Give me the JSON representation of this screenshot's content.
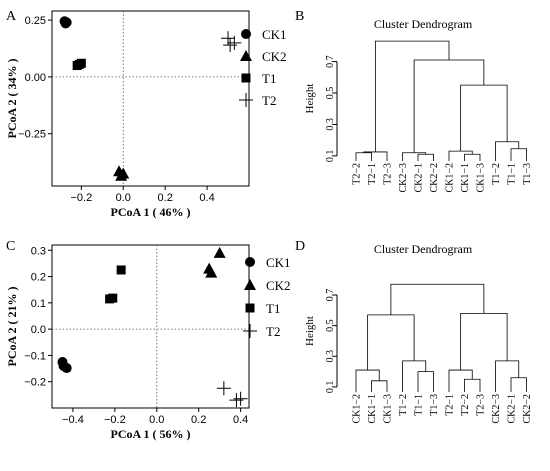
{
  "chart_data": [
    {
      "panel": "A",
      "type": "scatter",
      "xlabel": "PCoA 1 ( 46% )",
      "ylabel": "PCoA 2 ( 34% )",
      "xlim": [
        -0.34,
        0.6
      ],
      "ylim": [
        -0.48,
        0.29
      ],
      "xticks": [
        -0.2,
        0.0,
        0.2,
        0.4
      ],
      "xtick_labels": [
        "−0.2",
        "0.0",
        "0.2",
        "0.4"
      ],
      "yticks": [
        0.25,
        0.0,
        -0.25
      ],
      "ytick_labels": [
        "0.25",
        "0.00",
        "−0.25"
      ],
      "legend": [
        "CK1",
        "CK2",
        "T1",
        "T2"
      ],
      "legend_position": "top-right",
      "reference_lines": {
        "x": 0,
        "y": 0
      },
      "series": [
        {
          "name": "CK1",
          "marker": "circle",
          "points": [
            [
              -0.28,
              0.245
            ],
            [
              -0.27,
              0.24
            ],
            [
              -0.275,
              0.235
            ]
          ]
        },
        {
          "name": "CK2",
          "marker": "triangle",
          "points": [
            [
              -0.02,
              -0.415
            ],
            [
              0.0,
              -0.425
            ],
            [
              -0.01,
              -0.435
            ]
          ]
        },
        {
          "name": "T1",
          "marker": "square",
          "points": [
            [
              -0.22,
              0.05
            ],
            [
              -0.2,
              0.06
            ],
            [
              -0.21,
              0.055
            ]
          ]
        },
        {
          "name": "T2",
          "marker": "plus",
          "points": [
            [
              0.5,
              0.17
            ],
            [
              0.51,
              0.14
            ],
            [
              0.53,
              0.15
            ]
          ]
        }
      ]
    },
    {
      "panel": "B",
      "type": "dendrogram",
      "title": "Cluster Dendrogram",
      "ylabel": "Height",
      "ylim": [
        0.08,
        0.85
      ],
      "yticks": [
        0.1,
        0.3,
        0.5,
        0.7
      ],
      "leaves": [
        "T2−2",
        "T2−1",
        "T2−3",
        "CK2−3",
        "CK2−1",
        "CK2−2",
        "CK1−2",
        "CK1−1",
        "CK1−3",
        "T1−2",
        "T1−1",
        "T1−3"
      ],
      "merges": [
        {
          "a": 0,
          "b": 1,
          "h": 0.12
        },
        {
          "a": 12,
          "b": 2,
          "h": 0.125
        },
        {
          "a": 4,
          "b": 5,
          "h": 0.11
        },
        {
          "a": 3,
          "b": 14,
          "h": 0.12
        },
        {
          "a": 7,
          "b": 8,
          "h": 0.11
        },
        {
          "a": 6,
          "b": 16,
          "h": 0.13
        },
        {
          "a": 10,
          "b": 11,
          "h": 0.145
        },
        {
          "a": 9,
          "b": 18,
          "h": 0.19
        },
        {
          "a": 17,
          "b": 19,
          "h": 0.55
        },
        {
          "a": 15,
          "b": 20,
          "h": 0.71
        },
        {
          "a": 13,
          "b": 21,
          "h": 0.83
        }
      ]
    },
    {
      "panel": "C",
      "type": "scatter",
      "xlabel": "PCoA 1 ( 56% )",
      "ylabel": "PCoA 2 ( 21% )",
      "xlim": [
        -0.5,
        0.44
      ],
      "ylim": [
        -0.3,
        0.32
      ],
      "xticks": [
        -0.4,
        -0.2,
        0.0,
        0.2,
        0.4
      ],
      "xtick_labels": [
        "−0.4",
        "−0.2",
        "0.0",
        "0.2",
        "0.4"
      ],
      "yticks": [
        0.3,
        0.2,
        0.1,
        0.0,
        -0.1,
        -0.2
      ],
      "ytick_labels": [
        "0.3",
        "0.2",
        "0.1",
        "0.0",
        "−0.1",
        "−0.2"
      ],
      "legend": [
        "CK1",
        "CK2",
        "T1",
        "T2"
      ],
      "legend_position": "top-right",
      "reference_lines": {
        "x": 0,
        "y": 0
      },
      "series": [
        {
          "name": "CK1",
          "marker": "circle",
          "points": [
            [
              -0.45,
              -0.125
            ],
            [
              -0.43,
              -0.148
            ],
            [
              -0.445,
              -0.14
            ]
          ]
        },
        {
          "name": "CK2",
          "marker": "triangle",
          "points": [
            [
              0.3,
              0.29
            ],
            [
              0.25,
              0.23
            ],
            [
              0.26,
              0.215
            ]
          ]
        },
        {
          "name": "T1",
          "marker": "square",
          "points": [
            [
              -0.17,
              0.225
            ],
            [
              -0.225,
              0.115
            ],
            [
              -0.21,
              0.118
            ]
          ]
        },
        {
          "name": "T2",
          "marker": "plus",
          "points": [
            [
              0.32,
              -0.225
            ],
            [
              0.38,
              -0.27
            ],
            [
              0.4,
              -0.265
            ]
          ]
        }
      ]
    },
    {
      "panel": "D",
      "type": "dendrogram",
      "title": "Cluster Dendrogram",
      "ylabel": "Height",
      "ylim": [
        0.08,
        0.85
      ],
      "yticks": [
        0.1,
        0.3,
        0.5,
        0.7
      ],
      "leaves": [
        "CK1−2",
        "CK1−1",
        "CK1−3",
        "T1−2",
        "T1−1",
        "T1−3",
        "T2−1",
        "T2−2",
        "T2−3",
        "CK2−3",
        "CK2−1",
        "CK2−2"
      ],
      "merges": [
        {
          "a": 1,
          "b": 2,
          "h": 0.14
        },
        {
          "a": 0,
          "b": 12,
          "h": 0.21
        },
        {
          "a": 4,
          "b": 5,
          "h": 0.2
        },
        {
          "a": 3,
          "b": 14,
          "h": 0.27
        },
        {
          "a": 7,
          "b": 8,
          "h": 0.15
        },
        {
          "a": 6,
          "b": 16,
          "h": 0.21
        },
        {
          "a": 10,
          "b": 11,
          "h": 0.16
        },
        {
          "a": 9,
          "b": 18,
          "h": 0.27
        },
        {
          "a": 13,
          "b": 15,
          "h": 0.57
        },
        {
          "a": 17,
          "b": 19,
          "h": 0.58
        },
        {
          "a": 20,
          "b": 21,
          "h": 0.77
        }
      ]
    }
  ]
}
